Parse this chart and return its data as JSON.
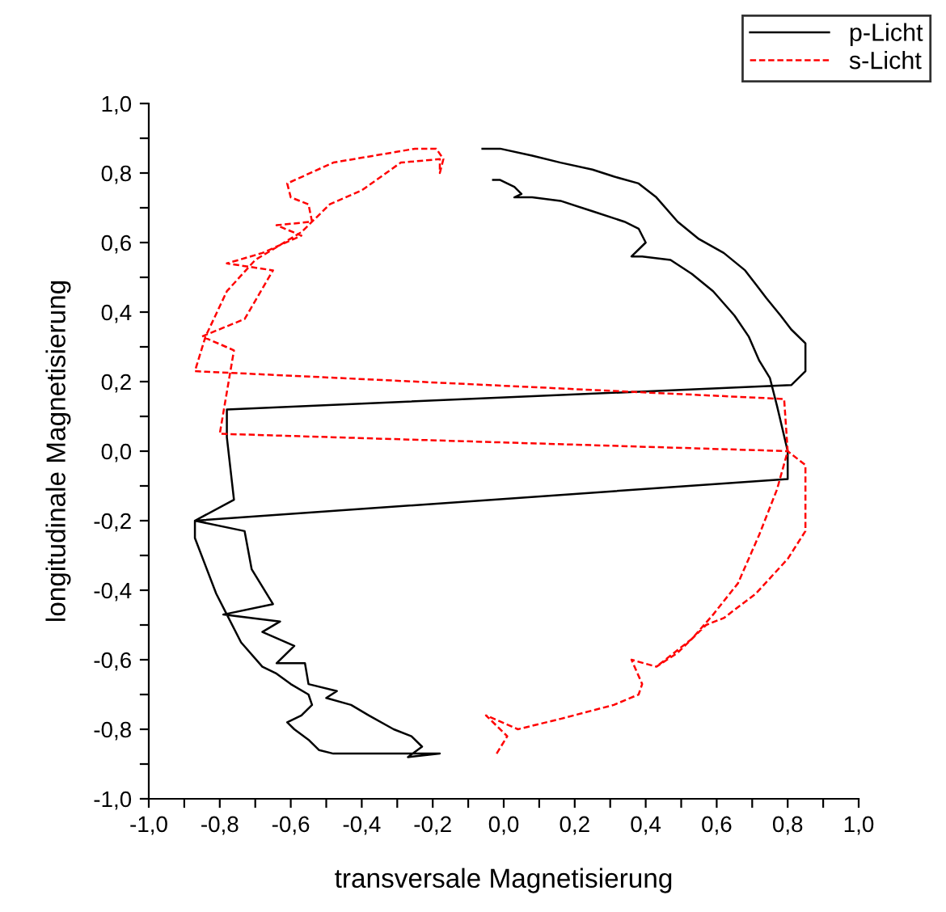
{
  "chart_data": {
    "type": "line",
    "xlabel": "transversale Magnetisierung",
    "ylabel": "longitudinale Magnetisierung",
    "xlim": [
      -1.0,
      1.0
    ],
    "ylim": [
      -1.0,
      1.0
    ],
    "xticks": [
      {
        "value": -1.0,
        "label": "-1,0"
      },
      {
        "value": -0.9,
        "label": null
      },
      {
        "value": -0.8,
        "label": "-0,8"
      },
      {
        "value": -0.7,
        "label": null
      },
      {
        "value": -0.6,
        "label": "-0,6"
      },
      {
        "value": -0.5,
        "label": null
      },
      {
        "value": -0.4,
        "label": "-0,4"
      },
      {
        "value": -0.3,
        "label": null
      },
      {
        "value": -0.2,
        "label": "-0,2"
      },
      {
        "value": -0.1,
        "label": null
      },
      {
        "value": 0.0,
        "label": "0,0"
      },
      {
        "value": 0.1,
        "label": null
      },
      {
        "value": 0.2,
        "label": "0,2"
      },
      {
        "value": 0.3,
        "label": null
      },
      {
        "value": 0.4,
        "label": "0,4"
      },
      {
        "value": 0.5,
        "label": null
      },
      {
        "value": 0.6,
        "label": "0,6"
      },
      {
        "value": 0.7,
        "label": null
      },
      {
        "value": 0.8,
        "label": "0,8"
      },
      {
        "value": 0.9,
        "label": null
      },
      {
        "value": 1.0,
        "label": "1,0"
      }
    ],
    "yticks": [
      {
        "value": -1.0,
        "label": "-1,0"
      },
      {
        "value": -0.9,
        "label": null
      },
      {
        "value": -0.8,
        "label": "-0,8"
      },
      {
        "value": -0.7,
        "label": null
      },
      {
        "value": -0.6,
        "label": "-0,6"
      },
      {
        "value": -0.5,
        "label": null
      },
      {
        "value": -0.4,
        "label": "-0,4"
      },
      {
        "value": -0.3,
        "label": null
      },
      {
        "value": -0.2,
        "label": "-0,2"
      },
      {
        "value": -0.1,
        "label": null
      },
      {
        "value": 0.0,
        "label": "0,0"
      },
      {
        "value": 0.1,
        "label": null
      },
      {
        "value": 0.2,
        "label": "0,2"
      },
      {
        "value": 0.3,
        "label": null
      },
      {
        "value": 0.4,
        "label": "0,4"
      },
      {
        "value": 0.5,
        "label": null
      },
      {
        "value": 0.6,
        "label": "0,6"
      },
      {
        "value": 0.7,
        "label": null
      },
      {
        "value": 0.8,
        "label": "0,8"
      },
      {
        "value": 0.9,
        "label": null
      },
      {
        "value": 1.0,
        "label": "1,0"
      }
    ],
    "grid": false,
    "legend": "top right",
    "series": [
      {
        "name": "p-Licht",
        "color": "#000000",
        "line_style": "solid",
        "x": [
          -0.03,
          -0.01,
          0.03,
          0.05,
          0.03,
          0.08,
          0.16,
          0.25,
          0.34,
          0.38,
          0.4,
          0.36,
          0.39,
          0.47,
          0.53,
          0.59,
          0.65,
          0.69,
          0.72,
          0.75,
          0.77,
          0.8,
          0.8,
          -0.87,
          -0.87,
          -0.84,
          -0.81,
          -0.78,
          -0.74,
          -0.68,
          -0.64,
          -0.6,
          -0.55,
          -0.54,
          -0.57,
          -0.61,
          -0.59,
          -0.55,
          -0.52,
          -0.48,
          -0.27,
          -0.18,
          -0.27,
          -0.23,
          -0.26,
          -0.31,
          -0.38,
          -0.43,
          -0.5,
          -0.47,
          -0.55,
          -0.56,
          -0.64,
          -0.59,
          -0.68,
          -0.63,
          -0.79,
          -0.65,
          -0.71,
          -0.73,
          -0.87,
          -0.76,
          -0.78,
          -0.78,
          0.81,
          0.85,
          0.85,
          0.81,
          0.78,
          0.74,
          0.71,
          0.68,
          0.62,
          0.55,
          0.49,
          0.43,
          0.38,
          0.31,
          0.25,
          0.16,
          0.08,
          -0.01,
          -0.06
        ],
        "values": [
          0.78,
          0.78,
          0.76,
          0.74,
          0.73,
          0.73,
          0.72,
          0.69,
          0.66,
          0.64,
          0.6,
          0.56,
          0.56,
          0.55,
          0.51,
          0.46,
          0.39,
          0.33,
          0.26,
          0.21,
          0.13,
          0.0,
          -0.08,
          -0.2,
          -0.25,
          -0.33,
          -0.41,
          -0.47,
          -0.55,
          -0.62,
          -0.64,
          -0.67,
          -0.7,
          -0.73,
          -0.76,
          -0.78,
          -0.8,
          -0.83,
          -0.86,
          -0.87,
          -0.87,
          -0.87,
          -0.88,
          -0.85,
          -0.82,
          -0.8,
          -0.76,
          -0.73,
          -0.71,
          -0.69,
          -0.67,
          -0.61,
          -0.61,
          -0.56,
          -0.52,
          -0.49,
          -0.47,
          -0.44,
          -0.34,
          -0.23,
          -0.2,
          -0.14,
          0.04,
          0.12,
          0.19,
          0.23,
          0.31,
          0.35,
          0.39,
          0.44,
          0.48,
          0.52,
          0.57,
          0.61,
          0.66,
          0.73,
          0.77,
          0.79,
          0.81,
          0.83,
          0.85,
          0.87,
          0.87
        ]
      },
      {
        "name": "s-Licht",
        "color": "#ff0000",
        "line_style": "dashed",
        "x": [
          -0.02,
          0.01,
          -0.05,
          0.04,
          0.16,
          0.31,
          0.38,
          0.39,
          0.36,
          0.43,
          0.49,
          0.57,
          0.62,
          0.71,
          0.8,
          0.85,
          0.85,
          0.8,
          -0.8,
          -0.77,
          -0.76,
          -0.85,
          -0.73,
          -0.65,
          -0.78,
          -0.68,
          -0.57,
          -0.64,
          -0.54,
          -0.55,
          -0.6,
          -0.61,
          -0.48,
          -0.25,
          -0.19,
          -0.17,
          -0.18,
          -0.18,
          -0.29,
          -0.4,
          -0.49,
          -0.57,
          -0.7,
          -0.78,
          -0.84,
          -0.87,
          0.79,
          0.8,
          0.77,
          0.72,
          0.66,
          0.59,
          0.53,
          0.48,
          0.43
        ],
        "values": [
          -0.87,
          -0.82,
          -0.76,
          -0.8,
          -0.77,
          -0.73,
          -0.7,
          -0.67,
          -0.6,
          -0.62,
          -0.58,
          -0.5,
          -0.48,
          -0.41,
          -0.31,
          -0.23,
          -0.04,
          0.0,
          0.05,
          0.23,
          0.29,
          0.33,
          0.38,
          0.52,
          0.54,
          0.57,
          0.62,
          0.65,
          0.66,
          0.71,
          0.73,
          0.77,
          0.83,
          0.87,
          0.87,
          0.84,
          0.8,
          0.84,
          0.83,
          0.75,
          0.71,
          0.63,
          0.55,
          0.46,
          0.33,
          0.23,
          0.15,
          0.0,
          -0.11,
          -0.24,
          -0.38,
          -0.47,
          -0.54,
          -0.58,
          -0.62
        ]
      }
    ]
  }
}
